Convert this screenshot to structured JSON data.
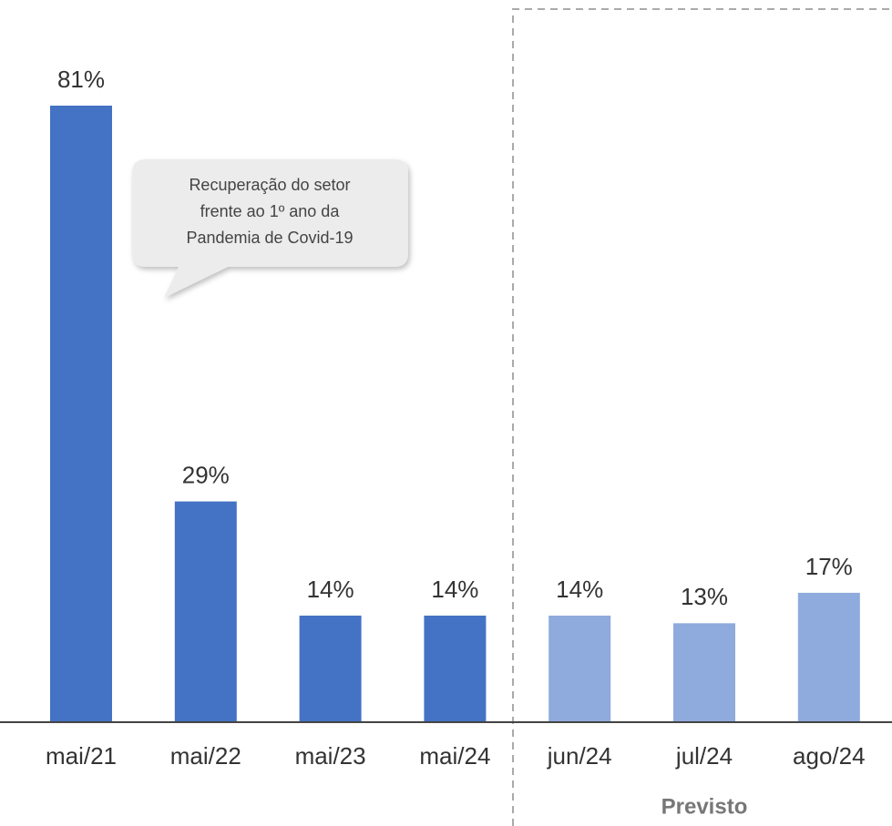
{
  "chart_data": {
    "type": "bar",
    "categories": [
      "mai/21",
      "mai/22",
      "mai/23",
      "mai/24",
      "jun/24",
      "jul/24",
      "ago/24"
    ],
    "values": [
      81,
      29,
      14,
      14,
      14,
      13,
      17
    ],
    "value_labels": [
      "81%",
      "29%",
      "14%",
      "14%",
      "14%",
      "13%",
      "17%"
    ],
    "colors": [
      "#4472c4",
      "#4472c4",
      "#4472c4",
      "#4472c4",
      "#8faadc",
      "#8faadc",
      "#8faadc"
    ],
    "annotation": [
      "Recuperação do setor",
      "frente ao 1º ano da",
      "Pandemia de Covid-19"
    ],
    "section_label": "Previsto"
  }
}
